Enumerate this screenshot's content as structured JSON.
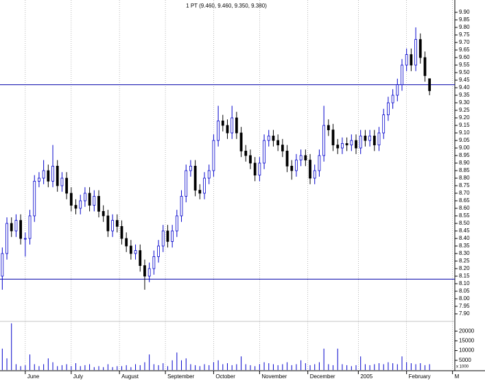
{
  "chart_data": {
    "type": "candlestick",
    "title": "1 PT (9.460, 9.460, 9.350, 9.380)",
    "up_color": "#0000cc",
    "down_color": "#000000",
    "volume_color": "#0000cc",
    "line_color": "#0000aa",
    "xlim": [
      0,
      99
    ],
    "xticks": [
      {
        "value": 5.5,
        "label": "June"
      },
      {
        "value": 15.5,
        "label": "July"
      },
      {
        "value": 26,
        "label": "August"
      },
      {
        "value": 36,
        "label": "September"
      },
      {
        "value": 46.5,
        "label": "October"
      },
      {
        "value": 56.5,
        "label": "November"
      },
      {
        "value": 67,
        "label": "December"
      },
      {
        "value": 78,
        "label": "2005"
      },
      {
        "value": 88.5,
        "label": "February"
      },
      {
        "value": 98.5,
        "label": "M"
      }
    ],
    "ylim": [
      7.85,
      9.95
    ],
    "yticks": [
      {
        "value": 7.9,
        "label": "7.90"
      },
      {
        "value": 7.95,
        "label": "7.95"
      },
      {
        "value": 8.0,
        "label": "8.00"
      },
      {
        "value": 8.05,
        "label": "8.05"
      },
      {
        "value": 8.1,
        "label": "8.10"
      },
      {
        "value": 8.15,
        "label": "8.15"
      },
      {
        "value": 8.2,
        "label": "8.20"
      },
      {
        "value": 8.25,
        "label": "8.25"
      },
      {
        "value": 8.3,
        "label": "8.30"
      },
      {
        "value": 8.35,
        "label": "8.35"
      },
      {
        "value": 8.4,
        "label": "8.40"
      },
      {
        "value": 8.45,
        "label": "8.45"
      },
      {
        "value": 8.5,
        "label": "8.50"
      },
      {
        "value": 8.55,
        "label": "8.55"
      },
      {
        "value": 8.6,
        "label": "8.60"
      },
      {
        "value": 8.65,
        "label": "8.65"
      },
      {
        "value": 8.7,
        "label": "8.70"
      },
      {
        "value": 8.75,
        "label": "8.75"
      },
      {
        "value": 8.8,
        "label": "8.80"
      },
      {
        "value": 8.85,
        "label": "8.85"
      },
      {
        "value": 8.9,
        "label": "8.90"
      },
      {
        "value": 8.95,
        "label": "8.95"
      },
      {
        "value": 9.0,
        "label": "9.00"
      },
      {
        "value": 9.05,
        "label": "9.05"
      },
      {
        "value": 9.1,
        "label": "9.10"
      },
      {
        "value": 9.15,
        "label": "9.15"
      },
      {
        "value": 9.2,
        "label": "9.20"
      },
      {
        "value": 9.25,
        "label": "9.25"
      },
      {
        "value": 9.3,
        "label": "9.30"
      },
      {
        "value": 9.35,
        "label": "9.35"
      },
      {
        "value": 9.4,
        "label": "9.40"
      },
      {
        "value": 9.45,
        "label": "9.45"
      },
      {
        "value": 9.5,
        "label": "9.50"
      },
      {
        "value": 9.55,
        "label": "9.55"
      },
      {
        "value": 9.6,
        "label": "9.60"
      },
      {
        "value": 9.65,
        "label": "9.65"
      },
      {
        "value": 9.7,
        "label": "9.70"
      },
      {
        "value": 9.75,
        "label": "9.75"
      },
      {
        "value": 9.8,
        "label": "9.80"
      },
      {
        "value": 9.85,
        "label": "9.85"
      },
      {
        "value": 9.9,
        "label": "9.90"
      }
    ],
    "hlines": [
      9.42,
      8.13
    ],
    "vlim": [
      0,
      25000
    ],
    "vticks": [
      5000,
      10000,
      15000,
      20000
    ],
    "volume_unit_label": "x 1000",
    "x": [
      0.5,
      1.5,
      2.5,
      3.5,
      4.5,
      5.5,
      6.5,
      7.5,
      8.5,
      9.5,
      10.5,
      11.5,
      12.5,
      13.5,
      14.5,
      15.5,
      16.5,
      17.5,
      18.5,
      19.5,
      20.5,
      21.5,
      22.5,
      23.5,
      24.5,
      25.5,
      26.5,
      27.5,
      28.5,
      29.5,
      30.5,
      31.5,
      32.5,
      33.5,
      34.5,
      35.5,
      36.5,
      37.5,
      38.5,
      39.5,
      40.5,
      41.5,
      42.5,
      43.5,
      44.5,
      45.5,
      46.5,
      47.5,
      48.5,
      49.5,
      50.5,
      51.5,
      52.5,
      53.5,
      54.5,
      55.5,
      56.5,
      57.5,
      58.5,
      59.5,
      60.5,
      61.5,
      62.5,
      63.5,
      64.5,
      65.5,
      66.5,
      67.5,
      68.5,
      69.5,
      70.5,
      71.5,
      72.5,
      73.5,
      74.5,
      75.5,
      76.5,
      77.5,
      78.5,
      79.5,
      80.5,
      81.5,
      82.5,
      83.5,
      84.5,
      85.5,
      86.5,
      87.5,
      88.5,
      89.5,
      90.5,
      91.5,
      92.5,
      93.5
    ],
    "open": [
      8.15,
      8.3,
      8.5,
      8.45,
      8.52,
      8.4,
      8.4,
      8.55,
      8.78,
      8.8,
      8.85,
      8.78,
      8.88,
      8.75,
      8.8,
      8.7,
      8.62,
      8.6,
      8.65,
      8.7,
      8.62,
      8.68,
      8.58,
      8.55,
      8.45,
      8.52,
      8.48,
      8.4,
      8.35,
      8.3,
      8.32,
      8.22,
      8.15,
      8.2,
      8.28,
      8.35,
      8.45,
      8.38,
      8.45,
      8.55,
      8.68,
      8.85,
      8.88,
      8.72,
      8.7,
      8.8,
      8.85,
      9.05,
      9.18,
      9.15,
      9.1,
      9.2,
      9.1,
      8.98,
      8.95,
      8.9,
      8.82,
      8.9,
      9.05,
      9.08,
      9.05,
      9.02,
      8.98,
      8.88,
      8.85,
      8.92,
      8.95,
      8.92,
      8.8,
      8.85,
      8.95,
      9.15,
      9.12,
      9.02,
      9.0,
      9.03,
      9.02,
      9.05,
      9.0,
      9.08,
      9.05,
      9.08,
      9.02,
      9.1,
      9.22,
      9.3,
      9.35,
      9.42,
      9.55,
      9.62,
      9.55,
      9.72,
      9.6,
      9.46
    ],
    "high": [
      8.34,
      8.54,
      8.54,
      8.56,
      8.56,
      8.44,
      8.59,
      8.82,
      8.84,
      8.92,
      8.89,
      9.02,
      8.92,
      8.84,
      8.84,
      8.74,
      8.66,
      8.69,
      8.74,
      8.74,
      8.72,
      8.72,
      8.62,
      8.59,
      8.56,
      8.56,
      8.52,
      8.44,
      8.39,
      8.36,
      8.36,
      8.26,
      8.24,
      8.32,
      8.39,
      8.49,
      8.49,
      8.49,
      8.59,
      8.72,
      8.89,
      8.92,
      8.92,
      8.76,
      8.84,
      8.89,
      9.09,
      9.28,
      9.22,
      9.19,
      9.28,
      9.24,
      9.14,
      9.02,
      8.99,
      8.94,
      8.94,
      9.09,
      9.12,
      9.12,
      9.09,
      9.06,
      9.02,
      8.92,
      8.96,
      8.99,
      8.99,
      8.96,
      8.89,
      8.99,
      9.28,
      9.19,
      9.16,
      9.06,
      9.07,
      9.07,
      9.09,
      9.09,
      9.12,
      9.12,
      9.12,
      9.12,
      9.14,
      9.26,
      9.34,
      9.39,
      9.46,
      9.59,
      9.66,
      9.66,
      9.8,
      9.76,
      9.64,
      9.46
    ],
    "low": [
      8.06,
      8.26,
      8.41,
      8.41,
      8.36,
      8.28,
      8.36,
      8.51,
      8.74,
      8.76,
      8.74,
      8.74,
      8.71,
      8.71,
      8.66,
      8.58,
      8.56,
      8.56,
      8.61,
      8.58,
      8.58,
      8.54,
      8.51,
      8.41,
      8.41,
      8.44,
      8.36,
      8.31,
      8.26,
      8.26,
      8.18,
      8.06,
      8.11,
      8.16,
      8.24,
      8.31,
      8.34,
      8.34,
      8.41,
      8.51,
      8.64,
      8.81,
      8.68,
      8.66,
      8.66,
      8.76,
      8.81,
      9.01,
      9.11,
      9.06,
      9.06,
      9.06,
      8.94,
      8.91,
      8.86,
      8.78,
      8.78,
      8.86,
      9.01,
      9.01,
      8.98,
      8.94,
      8.84,
      8.79,
      8.81,
      8.88,
      8.88,
      8.76,
      8.76,
      8.81,
      8.91,
      9.08,
      8.98,
      8.96,
      8.96,
      8.98,
      8.98,
      8.96,
      8.96,
      9.01,
      9.01,
      8.98,
      8.98,
      9.06,
      9.18,
      9.26,
      9.31,
      9.38,
      9.51,
      9.51,
      9.51,
      9.56,
      9.44,
      9.35
    ],
    "close": [
      8.3,
      8.5,
      8.45,
      8.52,
      8.4,
      8.4,
      8.55,
      8.78,
      8.8,
      8.85,
      8.78,
      8.88,
      8.75,
      8.8,
      8.7,
      8.62,
      8.6,
      8.65,
      8.7,
      8.62,
      8.68,
      8.58,
      8.55,
      8.45,
      8.52,
      8.48,
      8.4,
      8.35,
      8.3,
      8.32,
      8.22,
      8.15,
      8.2,
      8.28,
      8.35,
      8.45,
      8.38,
      8.45,
      8.55,
      8.68,
      8.85,
      8.88,
      8.72,
      8.7,
      8.8,
      8.85,
      9.05,
      9.18,
      9.15,
      9.1,
      9.2,
      9.1,
      8.98,
      8.95,
      8.9,
      8.82,
      8.9,
      9.05,
      9.08,
      9.05,
      9.02,
      8.98,
      8.88,
      8.85,
      8.92,
      8.95,
      8.92,
      8.8,
      8.85,
      8.95,
      9.15,
      9.12,
      9.02,
      9.0,
      9.03,
      9.02,
      9.05,
      9.0,
      9.08,
      9.05,
      9.08,
      9.02,
      9.1,
      9.22,
      9.3,
      9.35,
      9.42,
      9.55,
      9.62,
      9.55,
      9.72,
      9.6,
      9.48,
      9.38
    ],
    "volume": [
      11000,
      6000,
      24000,
      3000,
      2000,
      2500,
      8000,
      3000,
      2000,
      3000,
      6000,
      4000,
      2000,
      2500,
      3000,
      2000,
      3500,
      2000,
      2500,
      3000,
      1500,
      2000,
      1500,
      3000,
      1500,
      2000,
      2000,
      2500,
      1500,
      3000,
      2500,
      4000,
      8000,
      3000,
      2500,
      3500,
      2000,
      5000,
      9000,
      5000,
      6000,
      3000,
      2500,
      2000,
      3000,
      2500,
      4000,
      5000,
      3000,
      3500,
      2500,
      3000,
      7000,
      3000,
      2500,
      2000,
      3000,
      4000,
      3500,
      3000,
      2500,
      3000,
      4000,
      2500,
      3000,
      5000,
      3500,
      2500,
      3000,
      4000,
      11000,
      3000,
      2500,
      11000,
      3000,
      2500,
      2000,
      2500,
      7000,
      3000,
      2500,
      3000,
      3500,
      3000,
      4000,
      3500,
      3000,
      7000,
      4000,
      3500,
      3000,
      3500,
      2500,
      3000
    ]
  }
}
